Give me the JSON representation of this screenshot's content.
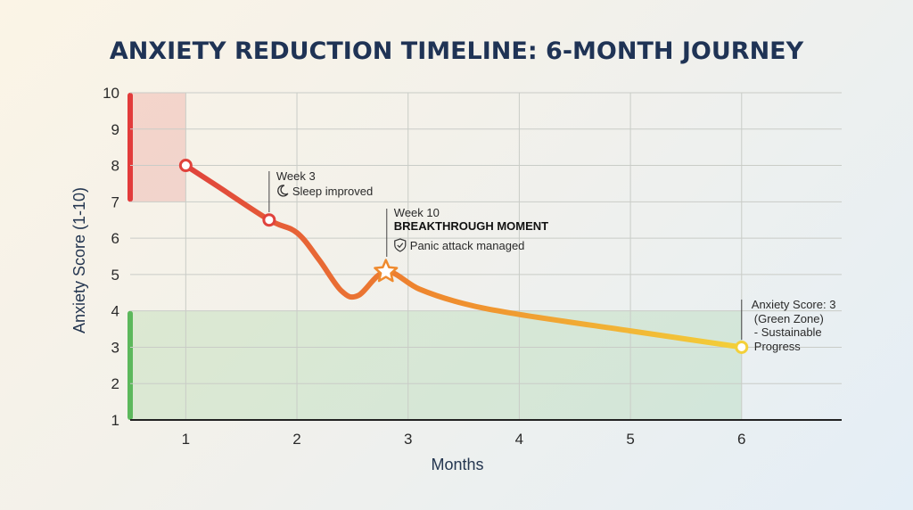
{
  "chart_data": {
    "type": "line",
    "title": "ANXIETY REDUCTION TIMELINE: 6-MONTH JOURNEY",
    "xlabel": "Months",
    "ylabel": "Anxiety Score (1-10)",
    "xlim": [
      0.5,
      6.9
    ],
    "ylim": [
      1,
      10
    ],
    "x_ticks": [
      1,
      2,
      3,
      4,
      5,
      6
    ],
    "y_ticks": [
      1,
      2,
      3,
      4,
      5,
      6,
      7,
      8,
      9,
      10
    ],
    "grid": true,
    "series": [
      {
        "name": "Anxiety Score",
        "points": [
          [
            1,
            8
          ],
          [
            1.3,
            7.4
          ],
          [
            1.75,
            6.5
          ],
          [
            2.0,
            6.15
          ],
          [
            2.2,
            5.4
          ],
          [
            2.4,
            4.55
          ],
          [
            2.55,
            4.42
          ],
          [
            2.8,
            5.08
          ],
          [
            3.1,
            4.6
          ],
          [
            3.5,
            4.2
          ],
          [
            4.0,
            3.9
          ],
          [
            5.0,
            3.45
          ],
          [
            6.0,
            3.0
          ]
        ]
      }
    ],
    "markers": [
      {
        "x": 1,
        "y": 8,
        "shape": "circle"
      },
      {
        "x": 1.75,
        "y": 6.5,
        "shape": "circle"
      },
      {
        "x": 2.8,
        "y": 5.08,
        "shape": "star"
      },
      {
        "x": 6,
        "y": 3,
        "shape": "circle"
      }
    ],
    "zones": [
      {
        "name": "red",
        "color": "#e23b3b",
        "x_range": [
          0.5,
          1
        ],
        "y_range": [
          7,
          10
        ]
      },
      {
        "name": "green",
        "color": "#5cb85c",
        "x_range": [
          0.5,
          6
        ],
        "y_range": [
          1,
          4
        ]
      }
    ],
    "annotations": [
      {
        "x": 1.75,
        "lines": [
          "Week 3",
          "Sleep improved"
        ],
        "icon": "moon-icon"
      },
      {
        "x": 2.8,
        "lines": [
          "Week 10",
          "BREAKTHROUGH MOMENT",
          "Panic attack managed"
        ],
        "icon": "shield-check-icon"
      },
      {
        "x": 6,
        "lines": [
          "Anxiety Score: 3",
          "(Green Zone)",
          "- Sustainable",
          "Progress"
        ]
      }
    ],
    "colors": {
      "line_start": "#e0423c",
      "line_mid": "#ef8a2e",
      "line_end": "#f3d03a",
      "grid": "#c9ccc7",
      "axis": "#222222"
    }
  }
}
